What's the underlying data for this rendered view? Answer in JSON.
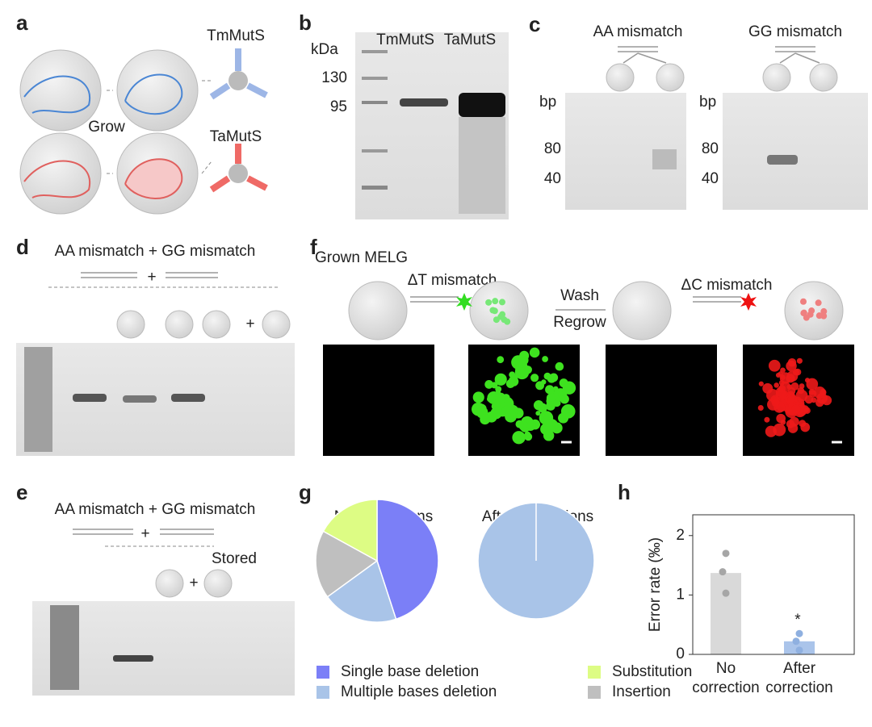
{
  "panels": {
    "a": {
      "label": "a",
      "grow": "Grow",
      "proteins": [
        "TmMutS",
        "TaMutS"
      ]
    },
    "b": {
      "label": "b",
      "unit": "kDa",
      "lanes": [
        "TmMutS",
        "TaMutS"
      ],
      "markers": [
        "130",
        "95"
      ]
    },
    "c": {
      "label": "c",
      "titles": [
        "AA mismatch",
        "GG mismatch"
      ],
      "gels": [
        {
          "unit": "bp",
          "sizes": [
            "80",
            "40"
          ]
        },
        {
          "unit": "bp",
          "sizes": [
            "80",
            "40"
          ]
        }
      ]
    },
    "d": {
      "label": "d",
      "header": "AA mismatch + GG mismatch",
      "plus": [
        "+",
        "+"
      ]
    },
    "e": {
      "label": "e",
      "header": "AA mismatch + GG mismatch",
      "plus": [
        "+",
        "+"
      ],
      "stored": "Stored"
    },
    "f": {
      "label": "f",
      "grown": "Grown MELG",
      "dt": "ΔT mismatch",
      "wash": "Wash",
      "regrow": "Regrow",
      "dc": "ΔC mismatch"
    },
    "g": {
      "label": "g"
    },
    "h": {
      "label": "h"
    }
  },
  "chart_data": [
    {
      "type": "pie",
      "categories": [
        "Single base deletion",
        "Multiple bases deletion",
        "Insertion",
        "Substitution"
      ],
      "colors": [
        "#7b7ff7",
        "#a9c4e8",
        "#bfbfbf",
        "#ddfc84"
      ],
      "series": [
        {
          "name": "No corrections",
          "values": [
            45,
            20,
            18,
            17
          ]
        },
        {
          "name": "After corrections",
          "values": [
            0,
            100,
            0,
            0
          ]
        }
      ]
    },
    {
      "type": "bar",
      "y_label": "Error rate (‰)",
      "categories": [
        "No correction",
        "After correction"
      ],
      "values": [
        1.37,
        0.22
      ],
      "colors": [
        "#d9d9d9",
        "#aac4ea"
      ],
      "points": [
        [
          1.7,
          1.39,
          1.03
        ],
        [
          0.35,
          0.22,
          0.07
        ]
      ],
      "point_colors": [
        "#a6a6a6",
        "#8fb0e0"
      ],
      "ylim": [
        0,
        2.35
      ],
      "yticks": [
        0,
        1,
        2
      ],
      "annotation": "*"
    }
  ]
}
